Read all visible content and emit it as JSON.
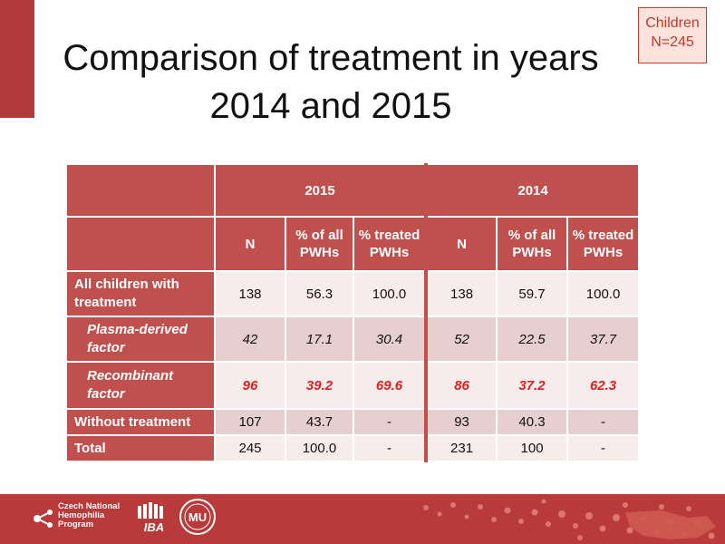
{
  "title": {
    "line1": "Comparison of treatment in years",
    "line2": "2014 and 2015"
  },
  "badge": {
    "line1": "Children",
    "line2": "N=245"
  },
  "table": {
    "years": [
      "2015",
      "2014"
    ],
    "col_n": "N",
    "col_pct_all_1": "% of all",
    "col_pct_all_2": "PWHs",
    "col_pct_treated_1": "% treated",
    "col_pct_treated_2": "PWHs",
    "rows": [
      {
        "label1": "All children with",
        "label2": "treatment",
        "v": [
          "138",
          "56.3",
          "100.0",
          "138",
          "59.7",
          "100.0"
        ]
      },
      {
        "label1": "Plasma-derived",
        "label2": "factor",
        "v": [
          "42",
          "17.1",
          "30.4",
          "52",
          "22.5",
          "37.7"
        ]
      },
      {
        "label1": "Recombinant",
        "label2": "factor",
        "v": [
          "96",
          "39.2",
          "69.6",
          "86",
          "37.2",
          "62.3"
        ]
      },
      {
        "label1": "Without treatment",
        "label2": "",
        "v": [
          "107",
          "43.7",
          "-",
          "93",
          "40.3",
          "-"
        ]
      },
      {
        "label1": "Total",
        "label2": "",
        "v": [
          "245",
          "100.0",
          "-",
          "231",
          "100",
          "-"
        ]
      }
    ]
  },
  "footer": {
    "logo_text1": "Czech National",
    "logo_text2": "Hemophilia",
    "logo_text3": "Program",
    "iba_text": "IBA",
    "mu_text": "MU"
  },
  "colors": {
    "accent": "#c0504d",
    "dark_accent": "#b83a3a",
    "highlight_red": "#e02020"
  }
}
